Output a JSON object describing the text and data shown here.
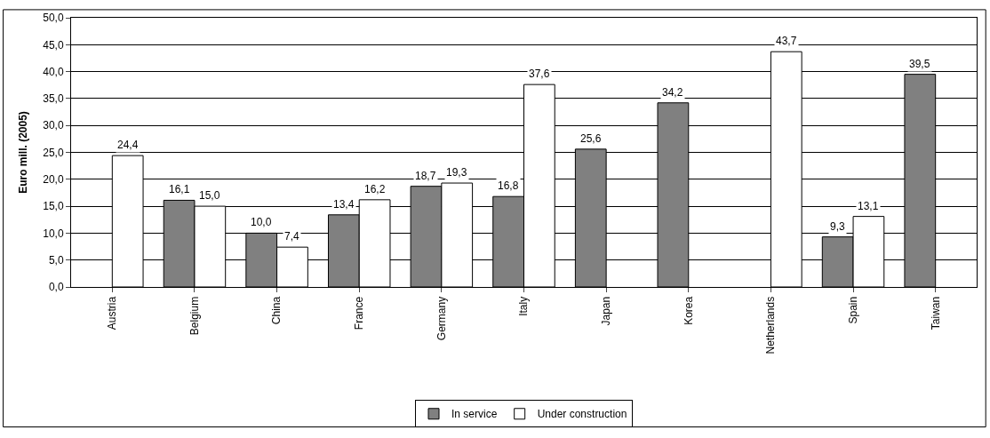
{
  "chart_data": {
    "type": "bar",
    "ylabel": "Euro mill. (2005)",
    "categories": [
      "Austria",
      "Belgium",
      "China",
      "France",
      "Germany",
      "Italy",
      "Japan",
      "Korea",
      "Netherlands",
      "Spain",
      "Taiwan"
    ],
    "series": [
      {
        "name": "In service",
        "color": "#808080",
        "values": [
          null,
          16.1,
          10.0,
          13.4,
          18.7,
          16.8,
          25.6,
          34.2,
          null,
          9.3,
          39.5
        ],
        "value_labels": [
          null,
          "16,1",
          "10,0",
          "13,4",
          "18,7",
          "16,8",
          "25,6",
          "34,2",
          null,
          "9,3",
          "39,5"
        ]
      },
      {
        "name": "Under construction",
        "color": "#ffffff",
        "values": [
          24.4,
          15.0,
          7.4,
          16.2,
          19.3,
          37.6,
          null,
          null,
          43.7,
          13.1,
          null
        ],
        "value_labels": [
          "24,4",
          "15,0",
          "7,4",
          "16,2",
          "19,3",
          "37,6",
          null,
          null,
          "43,7",
          "13,1",
          null
        ]
      }
    ],
    "ylim": [
      0,
      50
    ],
    "yticks": [
      {
        "value": 0,
        "label": "0,0"
      },
      {
        "value": 5,
        "label": "5,0"
      },
      {
        "value": 10,
        "label": "10,0"
      },
      {
        "value": 15,
        "label": "15,0"
      },
      {
        "value": 20,
        "label": "20,0"
      },
      {
        "value": 25,
        "label": "25,0"
      },
      {
        "value": 30,
        "label": "30,0"
      },
      {
        "value": 35,
        "label": "35,0"
      },
      {
        "value": 40,
        "label": "40,0"
      },
      {
        "value": 45,
        "label": "45,0"
      },
      {
        "value": 50,
        "label": "50,0"
      }
    ],
    "grid": "y",
    "legend": "bottom"
  }
}
